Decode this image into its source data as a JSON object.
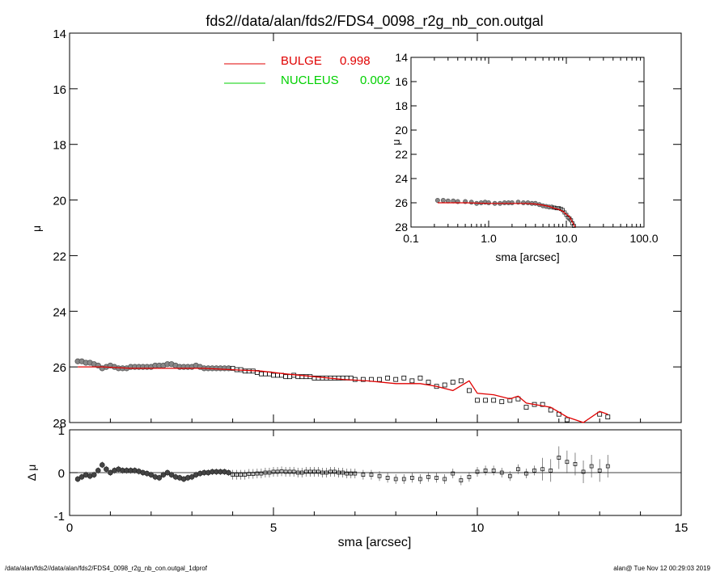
{
  "title": "fds2//data/alan/fds2/FDS4_0098_r2g_nb_con.outgal",
  "footer_left": "/data/alan/fds2//data/alan/fds2/FDS4_0098_r2g_nb_con.outgal_1dprof",
  "footer_right": "alan@  Tue Nov 12 00:29:03 2019",
  "colors": {
    "bulge": "#e00000",
    "nucleus": "#00d000",
    "data": "#000000"
  },
  "legend": [
    {
      "label": "BULGE",
      "value": "0.998",
      "color": "#e00000"
    },
    {
      "label": "NUCLEUS",
      "value": "0.002",
      "color": "#00d000"
    }
  ],
  "chart_data": [
    {
      "type": "scatter",
      "panel": "main",
      "xlabel": "sma [arcsec]",
      "ylabel": "μ",
      "xlim": [
        0,
        15
      ],
      "ylim": [
        28,
        14
      ],
      "x_ticks": [
        "0",
        "5",
        "10",
        "15"
      ],
      "y_ticks": [
        "14",
        "16",
        "18",
        "20",
        "22",
        "24",
        "26",
        "28"
      ],
      "series": [
        {
          "name": "data",
          "x": [
            0.2,
            0.3,
            0.4,
            0.5,
            0.6,
            0.7,
            0.8,
            0.9,
            1.0,
            1.1,
            1.2,
            1.3,
            1.4,
            1.5,
            1.6,
            1.7,
            1.8,
            1.9,
            2.0,
            2.1,
            2.2,
            2.3,
            2.4,
            2.5,
            2.6,
            2.7,
            2.8,
            2.9,
            3.0,
            3.1,
            3.2,
            3.3,
            3.4,
            3.5,
            3.6,
            3.7,
            3.8,
            3.9,
            4.0,
            4.1,
            4.2,
            4.3,
            4.4,
            4.5,
            4.6,
            4.7,
            4.8,
            4.9,
            5.0,
            5.1,
            5.2,
            5.3,
            5.4,
            5.5,
            5.6,
            5.7,
            5.8,
            5.9,
            6.0,
            6.1,
            6.2,
            6.3,
            6.4,
            6.5,
            6.6,
            6.7,
            6.8,
            6.9,
            7.0,
            7.2,
            7.4,
            7.6,
            7.8,
            8.0,
            8.2,
            8.4,
            8.6,
            8.8,
            9.0,
            9.2,
            9.4,
            9.6,
            9.8,
            10.0,
            10.2,
            10.4,
            10.6,
            10.8,
            11.0,
            11.2,
            11.4,
            11.6,
            11.8,
            12.0,
            12.2,
            12.4,
            12.6,
            12.8,
            13.0,
            13.2
          ],
          "y": [
            25.8,
            25.8,
            25.85,
            25.85,
            25.9,
            25.95,
            26.05,
            26.0,
            25.95,
            26.0,
            26.05,
            26.05,
            26.05,
            26.0,
            26.0,
            26.0,
            26.0,
            26.0,
            26.0,
            25.95,
            25.95,
            25.95,
            25.9,
            25.9,
            25.95,
            26.0,
            26.0,
            26.0,
            26.0,
            25.95,
            26.0,
            26.05,
            26.05,
            26.05,
            26.05,
            26.05,
            26.05,
            26.05,
            26.05,
            26.1,
            26.1,
            26.15,
            26.15,
            26.15,
            26.2,
            26.25,
            26.25,
            26.25,
            26.3,
            26.3,
            26.3,
            26.35,
            26.35,
            26.3,
            26.35,
            26.35,
            26.35,
            26.35,
            26.4,
            26.4,
            26.4,
            26.4,
            26.4,
            26.4,
            26.4,
            26.4,
            26.4,
            26.4,
            26.45,
            26.45,
            26.45,
            26.45,
            26.4,
            26.45,
            26.4,
            26.5,
            26.4,
            26.55,
            26.7,
            26.65,
            26.55,
            26.5,
            26.85,
            27.2,
            27.2,
            27.2,
            27.25,
            27.2,
            27.15,
            27.45,
            27.35,
            27.35,
            27.55,
            27.7,
            27.9,
            28.1,
            28.3,
            28.2,
            27.7,
            27.8
          ]
        },
        {
          "name": "BULGE 0.998",
          "x": [
            0.2,
            0.8,
            1.5,
            2.2,
            2.8,
            3.3,
            4.0,
            4.7,
            5.3,
            6.0,
            6.7,
            7.3,
            8.0,
            8.6,
            9.0,
            9.4,
            9.8,
            10.0,
            10.4,
            10.8,
            11.0,
            11.2,
            11.4,
            11.8,
            12.2,
            12.6,
            13.0,
            13.2
          ],
          "y": [
            26.0,
            26.0,
            26.05,
            26.05,
            26.05,
            26.05,
            26.1,
            26.15,
            26.25,
            26.35,
            26.45,
            26.5,
            26.6,
            26.6,
            26.7,
            26.85,
            26.5,
            26.95,
            27.0,
            27.15,
            27.05,
            27.3,
            27.35,
            27.45,
            27.8,
            28.1,
            27.6,
            27.7
          ]
        }
      ]
    },
    {
      "type": "scatter",
      "panel": "residual",
      "xlabel": "sma [arcsec]",
      "ylabel": "Δ μ",
      "xlim": [
        0,
        15
      ],
      "ylim": [
        -1,
        1
      ],
      "x_ticks": [
        "0",
        "5",
        "10",
        "15"
      ],
      "y_ticks": [
        "-1",
        "0",
        "1"
      ],
      "series": [
        {
          "name": "residual",
          "x": [
            0.2,
            0.3,
            0.4,
            0.5,
            0.6,
            0.7,
            0.8,
            0.9,
            1.0,
            1.1,
            1.2,
            1.3,
            1.4,
            1.5,
            1.6,
            1.7,
            1.8,
            1.9,
            2.0,
            2.1,
            2.2,
            2.3,
            2.4,
            2.5,
            2.6,
            2.7,
            2.8,
            2.9,
            3.0,
            3.1,
            3.2,
            3.3,
            3.4,
            3.5,
            3.6,
            3.7,
            3.8,
            3.9,
            4.0,
            4.1,
            4.2,
            4.3,
            4.4,
            4.5,
            4.6,
            4.7,
            4.8,
            4.9,
            5.0,
            5.1,
            5.2,
            5.3,
            5.4,
            5.5,
            5.6,
            5.7,
            5.8,
            5.9,
            6.0,
            6.1,
            6.2,
            6.3,
            6.4,
            6.5,
            6.6,
            6.7,
            6.8,
            6.9,
            7.0,
            7.2,
            7.4,
            7.6,
            7.8,
            8.0,
            8.2,
            8.4,
            8.6,
            8.8,
            9.0,
            9.2,
            9.4,
            9.6,
            9.8,
            10.0,
            10.2,
            10.4,
            10.6,
            10.8,
            11.0,
            11.2,
            11.4,
            11.6,
            11.8,
            12.0,
            12.2,
            12.4,
            12.6,
            12.8,
            13.0,
            13.2
          ],
          "y": [
            -0.15,
            -0.1,
            -0.05,
            -0.08,
            -0.05,
            0.05,
            0.18,
            0.08,
            0.0,
            0.05,
            0.08,
            0.05,
            0.05,
            0.05,
            0.05,
            0.03,
            0.0,
            -0.02,
            -0.05,
            -0.1,
            -0.12,
            -0.05,
            0.0,
            -0.05,
            -0.1,
            -0.12,
            -0.15,
            -0.12,
            -0.1,
            -0.05,
            -0.02,
            0.0,
            0.0,
            0.02,
            0.02,
            0.02,
            0.02,
            0.0,
            -0.05,
            -0.05,
            -0.05,
            -0.05,
            -0.03,
            -0.03,
            -0.02,
            -0.02,
            0.0,
            0.0,
            0.02,
            0.02,
            0.03,
            0.02,
            0.02,
            0.02,
            0.0,
            0.0,
            0.02,
            0.02,
            0.02,
            0.02,
            0.0,
            0.0,
            0.02,
            0.02,
            0.0,
            0.0,
            -0.02,
            -0.02,
            -0.02,
            -0.05,
            -0.05,
            -0.08,
            -0.12,
            -0.15,
            -0.15,
            -0.12,
            -0.15,
            -0.1,
            -0.12,
            -0.15,
            -0.02,
            -0.18,
            -0.1,
            0.02,
            0.05,
            0.05,
            0.0,
            -0.08,
            0.08,
            -0.02,
            0.05,
            0.08,
            0.05,
            0.35,
            0.25,
            0.2,
            0.02,
            0.15,
            0.05,
            0.15
          ]
        }
      ]
    },
    {
      "type": "scatter",
      "panel": "inset",
      "xlabel": "sma [arcsec]",
      "ylabel": "μ",
      "xscale": "log",
      "xlim": [
        0.1,
        100
      ],
      "ylim": [
        28,
        14
      ],
      "x_ticks": [
        "0.1",
        "1.0",
        "10.0",
        "100.0"
      ],
      "y_ticks": [
        "14",
        "16",
        "18",
        "20",
        "22",
        "24",
        "26",
        "28"
      ],
      "series": [
        {
          "name": "data",
          "x": [
            0.22,
            0.26,
            0.3,
            0.35,
            0.4,
            0.5,
            0.6,
            0.7,
            0.8,
            0.9,
            1.0,
            1.2,
            1.4,
            1.6,
            1.8,
            2.0,
            2.4,
            2.8,
            3.2,
            3.6,
            4.0,
            4.5,
            5.0,
            5.5,
            6.0,
            6.5,
            7.0,
            7.5,
            8.0,
            8.5,
            9.0,
            9.5,
            10.0,
            10.5,
            11.0,
            11.5,
            12.0,
            12.5,
            13.0
          ],
          "y": [
            25.8,
            25.8,
            25.85,
            25.85,
            25.9,
            25.9,
            25.95,
            26.05,
            26.0,
            25.95,
            26.0,
            26.05,
            26.05,
            26.0,
            26.0,
            26.0,
            25.95,
            26.0,
            26.0,
            26.05,
            26.05,
            26.15,
            26.25,
            26.3,
            26.35,
            26.35,
            26.4,
            26.45,
            26.45,
            26.5,
            26.6,
            26.8,
            27.0,
            27.2,
            27.3,
            27.45,
            27.7,
            27.9,
            28.1
          ]
        },
        {
          "name": "BULGE 0.998",
          "x": [
            0.22,
            0.5,
            1.0,
            2.0,
            3.0,
            4.0,
            5.0,
            6.0,
            7.0,
            8.0,
            9.0,
            10.0,
            11.0,
            12.0,
            13.0
          ],
          "y": [
            26.0,
            26.0,
            26.05,
            26.05,
            26.05,
            26.1,
            26.2,
            26.3,
            26.45,
            26.55,
            26.7,
            26.95,
            27.15,
            27.6,
            28.1
          ]
        }
      ]
    }
  ]
}
